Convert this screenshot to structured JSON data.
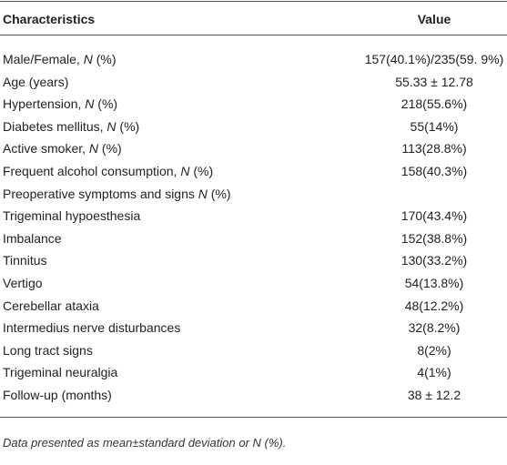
{
  "table": {
    "header": [
      "Characteristics",
      "Value"
    ],
    "rows": [
      {
        "label": [
          "Male/Female, ",
          "N",
          " (%)"
        ],
        "value": "157(40.1%)/235(59. 9%)"
      },
      {
        "label": [
          "Age (years)"
        ],
        "value": "55.33 ± 12.78"
      },
      {
        "label": [
          "Hypertension, ",
          "N",
          " (%)"
        ],
        "value": "218(55.6%)"
      },
      {
        "label": [
          "Diabetes mellitus, ",
          "N",
          " (%)"
        ],
        "value": "55(14%)"
      },
      {
        "label": [
          "Active smoker, ",
          "N",
          " (%)"
        ],
        "value": "113(28.8%)"
      },
      {
        "label": [
          "Frequent alcohol consumption, ",
          "N",
          " (%)"
        ],
        "value": "158(40.3%)"
      },
      {
        "label": [
          "Preoperative symptoms and signs ",
          "N",
          " (%)"
        ],
        "value": null
      },
      {
        "label": [
          "Trigeminal hypoesthesia"
        ],
        "value": "170(43.4%)"
      },
      {
        "label": [
          "Imbalance"
        ],
        "value": "152(38.8%)"
      },
      {
        "label": [
          "Tinnitus"
        ],
        "value": "130(33.2%)"
      },
      {
        "label": [
          "Vertigo"
        ],
        "value": "54(13.8%)"
      },
      {
        "label": [
          "Cerebellar ataxia"
        ],
        "value": "48(12.2%)"
      },
      {
        "label": [
          "Intermedius nerve disturbances"
        ],
        "value": "32(8.2%)"
      },
      {
        "label": [
          "Long tract signs"
        ],
        "value": "8(2%)"
      },
      {
        "label": [
          "Trigeminal neuralgia"
        ],
        "value": "4(1%)"
      },
      {
        "label": [
          "Follow-up (months)"
        ],
        "value": "38 ± 12.2"
      }
    ],
    "footnote": "Data presented as mean±standard deviation or N (%)."
  }
}
